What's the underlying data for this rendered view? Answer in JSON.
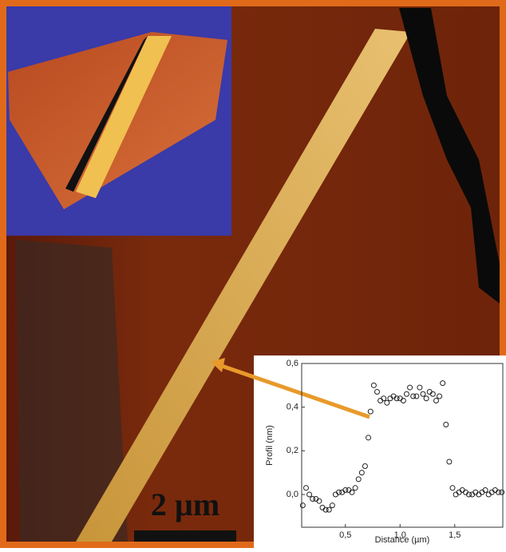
{
  "scale_bar": {
    "label": "2 µm"
  },
  "chart_data": {
    "type": "scatter",
    "x_label": "Distance (µm)",
    "y_label": "Profil (nm)",
    "xlim": [
      0.1,
      1.94
    ],
    "ylim": [
      -0.15,
      0.6
    ],
    "xticks": [
      {
        "value": 0.5,
        "label": "0,5"
      },
      {
        "value": 1.0,
        "label": "1,0"
      },
      {
        "value": 1.5,
        "label": "1,5"
      }
    ],
    "yticks": [
      {
        "value": 0.0,
        "label": "0,0"
      },
      {
        "value": 0.2,
        "label": "0,2"
      },
      {
        "value": 0.4,
        "label": "0,4"
      },
      {
        "value": 0.6,
        "label": "0,6"
      }
    ],
    "color": "#222222",
    "x": [
      0.11,
      0.14,
      0.17,
      0.2,
      0.23,
      0.26,
      0.29,
      0.32,
      0.35,
      0.38,
      0.41,
      0.44,
      0.47,
      0.5,
      0.53,
      0.56,
      0.59,
      0.62,
      0.65,
      0.68,
      0.71,
      0.73,
      0.76,
      0.79,
      0.82,
      0.85,
      0.88,
      0.91,
      0.94,
      0.97,
      1.0,
      1.03,
      1.06,
      1.09,
      1.12,
      1.15,
      1.18,
      1.21,
      1.24,
      1.27,
      1.3,
      1.33,
      1.36,
      1.39,
      1.42,
      1.45,
      1.48,
      1.51,
      1.54,
      1.57,
      1.6,
      1.63,
      1.66,
      1.69,
      1.72,
      1.75,
      1.78,
      1.81,
      1.84,
      1.87,
      1.9,
      1.93
    ],
    "values": [
      -0.05,
      0.03,
      0.0,
      -0.02,
      -0.02,
      -0.03,
      -0.06,
      -0.07,
      -0.07,
      -0.05,
      0.0,
      0.01,
      0.01,
      0.02,
      0.02,
      0.01,
      0.03,
      0.07,
      0.1,
      0.13,
      0.26,
      0.38,
      0.5,
      0.47,
      0.43,
      0.44,
      0.42,
      0.44,
      0.45,
      0.44,
      0.44,
      0.43,
      0.46,
      0.49,
      0.45,
      0.45,
      0.49,
      0.46,
      0.44,
      0.47,
      0.46,
      0.43,
      0.45,
      0.51,
      0.32,
      0.15,
      0.03,
      0.0,
      0.01,
      0.02,
      0.01,
      0.0,
      0.0,
      0.01,
      0.0,
      0.01,
      0.02,
      0.0,
      0.01,
      0.02,
      0.01,
      0.01
    ]
  }
}
